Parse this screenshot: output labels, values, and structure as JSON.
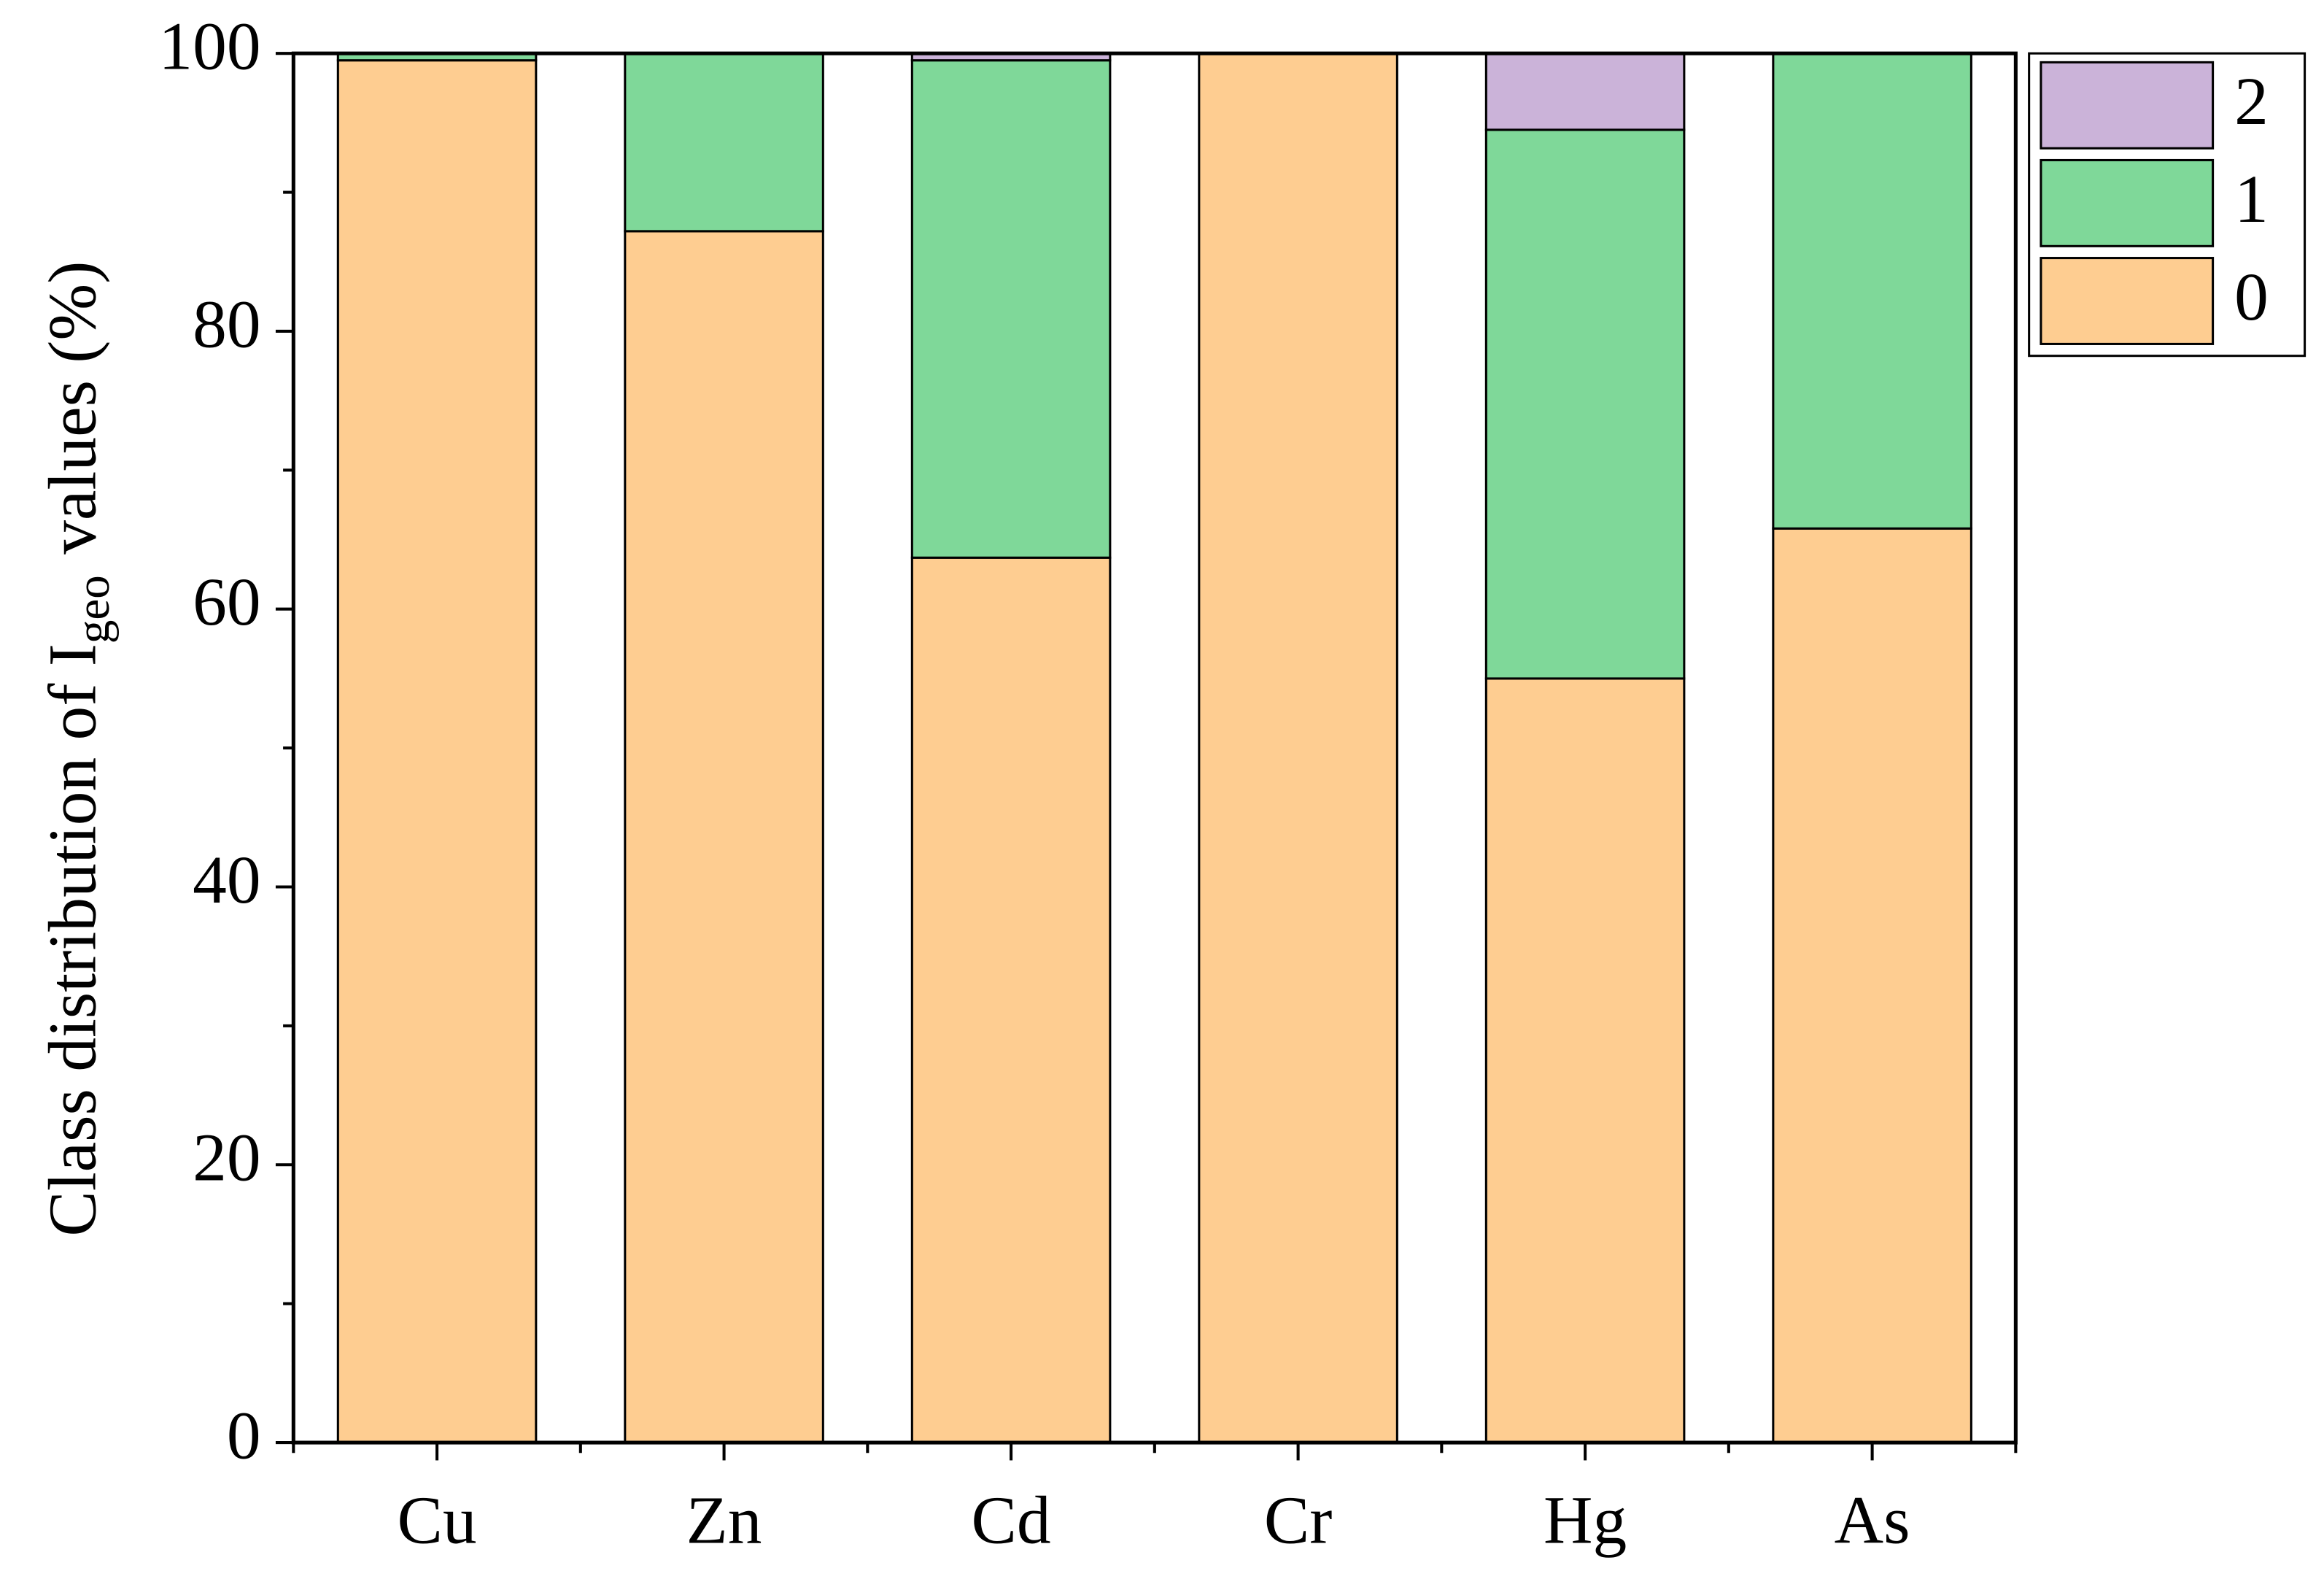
{
  "chart_data": {
    "type": "stacked_bar",
    "y_label": {
      "text": "Class distribution of I",
      "subscript": "geo",
      "suffix": "values (%)"
    },
    "categories": [
      "Cu",
      "Zn",
      "Cd",
      "Cr",
      "Hg",
      "As"
    ],
    "series": [
      {
        "name": "0",
        "color": "#fecd91",
        "values": [
          99.5,
          87.2,
          63.7,
          100,
          55.0,
          65.8
        ]
      },
      {
        "name": "1",
        "color": "#7fd899",
        "values": [
          0.5,
          12.8,
          35.8,
          0,
          39.5,
          34.2
        ]
      },
      {
        "name": "2",
        "color": "#cbb3d9",
        "values": [
          0,
          0,
          0.5,
          0,
          5.5,
          0
        ]
      }
    ],
    "ylim": [
      0,
      100
    ],
    "yticks": [
      0,
      20,
      40,
      60,
      80,
      100
    ],
    "legend": "outside-upper-right"
  }
}
